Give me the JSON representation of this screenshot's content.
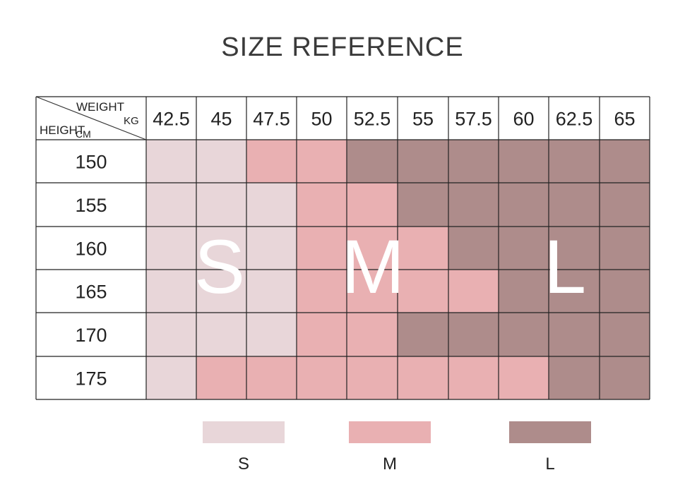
{
  "title": "SIZE REFERENCE",
  "chart_data": {
    "type": "table",
    "title": "SIZE REFERENCE",
    "corner": {
      "top_label": "WEIGHT",
      "top_unit": "KG",
      "left_label": "HEIGHT",
      "left_unit": "CM"
    },
    "weights_kg": [
      "42.5",
      "45",
      "47.5",
      "50",
      "52.5",
      "55",
      "57.5",
      "60",
      "62.5",
      "65"
    ],
    "heights_cm": [
      "150",
      "155",
      "160",
      "165",
      "170",
      "175"
    ],
    "sizes": [
      [
        "S",
        "S",
        "M",
        "M",
        "L",
        "L",
        "L",
        "L",
        "L",
        "L"
      ],
      [
        "S",
        "S",
        "S",
        "M",
        "M",
        "L",
        "L",
        "L",
        "L",
        "L"
      ],
      [
        "S",
        "S",
        "S",
        "M",
        "M",
        "M",
        "L",
        "L",
        "L",
        "L"
      ],
      [
        "S",
        "S",
        "S",
        "M",
        "M",
        "M",
        "M",
        "L",
        "L",
        "L"
      ],
      [
        "S",
        "S",
        "S",
        "M",
        "M",
        "L",
        "L",
        "L",
        "L",
        "L"
      ],
      [
        "S",
        "M",
        "M",
        "M",
        "M",
        "M",
        "M",
        "M",
        "L",
        "L"
      ]
    ],
    "region_labels": [
      "S",
      "M",
      "L"
    ],
    "legend": [
      {
        "label": "S",
        "color": "#e8d6d9"
      },
      {
        "label": "M",
        "color": "#e9b0b2"
      },
      {
        "label": "L",
        "color": "#ae8c8b"
      }
    ]
  }
}
